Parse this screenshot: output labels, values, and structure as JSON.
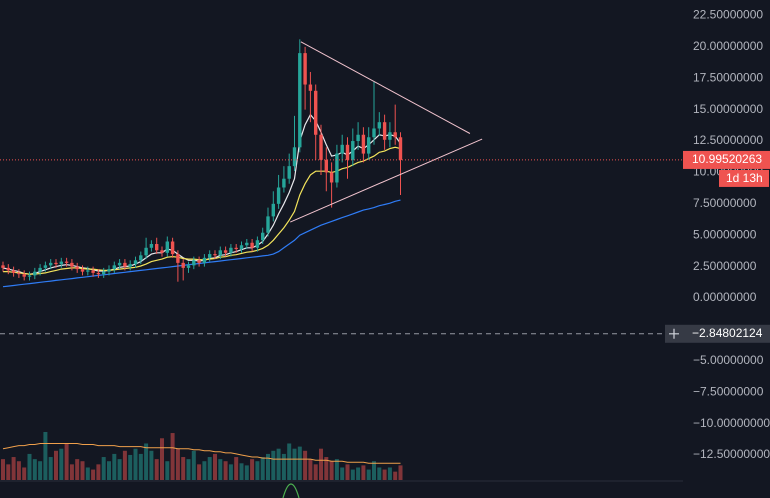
{
  "chart_data": {
    "type": "candlestick",
    "ylim": [
      -14.49,
      23.73
    ],
    "yticks": [
      {
        "value": 22.5,
        "label": "22.50000000"
      },
      {
        "value": 20,
        "label": "20.00000000"
      },
      {
        "value": 17.5,
        "label": "17.50000000"
      },
      {
        "value": 15,
        "label": "15.00000000"
      },
      {
        "value": 12.5,
        "label": "12.50000000"
      },
      {
        "value": 10,
        "label": "10.00000000"
      },
      {
        "value": 7.5,
        "label": "7.50000000"
      },
      {
        "value": 5,
        "label": "5.00000000"
      },
      {
        "value": 2.5,
        "label": "2.50000000"
      },
      {
        "value": 0,
        "label": "0.00000000"
      },
      {
        "value": -5,
        "label": "−5.00000000"
      },
      {
        "value": -7.5,
        "label": "−7.50000000"
      },
      {
        "value": -10,
        "label": "−10.00000000"
      },
      {
        "value": -12.5,
        "label": "−12.50000000"
      }
    ],
    "grid": false,
    "up_color": "#26a69a",
    "down_color": "#ef5350",
    "open": [
      2.6,
      2.4,
      2.2,
      2.0,
      1.9,
      1.7,
      1.8,
      2.1,
      2.4,
      2.6,
      2.8,
      2.7,
      2.9,
      2.8,
      2.5,
      2.3,
      2.1,
      2.2,
      2.0,
      1.9,
      2.1,
      2.3,
      2.6,
      2.8,
      2.5,
      2.7,
      3.0,
      3.4,
      4.0,
      4.3,
      3.8,
      3.6,
      4.5,
      3.5,
      2.8,
      2.4,
      2.6,
      3.0,
      2.8,
      3.2,
      3.5,
      3.4,
      3.8,
      3.6,
      4.0,
      3.9,
      4.2,
      4.4,
      4.0,
      4.6,
      5.2,
      6.5,
      7.5,
      8.8,
      9.5,
      10.5,
      12.0,
      19.5,
      17.0,
      16.5,
      13.0,
      11.0,
      10.0,
      9.2,
      11.5,
      12.2,
      11.0,
      12.5,
      13.0,
      11.5,
      12.8,
      13.5,
      14.0,
      12.6,
      13.2,
      12.8
    ],
    "high": [
      2.9,
      2.7,
      2.5,
      2.3,
      2.2,
      2.1,
      2.4,
      2.7,
      2.9,
      3.1,
      3.1,
      3.2,
      3.2,
      3.1,
      2.8,
      2.6,
      2.5,
      2.5,
      2.3,
      2.4,
      2.6,
      2.9,
      3.1,
      3.1,
      3.0,
      3.3,
      3.7,
      4.8,
      4.6,
      4.8,
      4.1,
      4.9,
      4.8,
      3.8,
      3.1,
      2.9,
      3.3,
      3.3,
      3.5,
      3.8,
      3.8,
      4.1,
      4.1,
      4.3,
      4.3,
      4.5,
      4.7,
      4.7,
      4.9,
      5.6,
      7.2,
      8.5,
      9.8,
      10.5,
      11.5,
      14.5,
      20.6,
      20.0,
      18.0,
      17.0,
      13.8,
      12.0,
      10.8,
      12.2,
      13.0,
      12.8,
      13.5,
      14.0,
      13.6,
      13.6,
      17.2,
      14.8,
      14.6,
      14.0,
      15.4,
      13.2
    ],
    "low": [
      2.1,
      1.9,
      1.7,
      1.6,
      1.4,
      1.4,
      1.5,
      1.8,
      2.1,
      2.3,
      2.4,
      2.4,
      2.5,
      2.2,
      2.0,
      1.8,
      1.8,
      1.7,
      1.6,
      1.6,
      1.8,
      2.0,
      2.3,
      2.2,
      2.2,
      2.4,
      2.7,
      3.1,
      3.7,
      3.5,
      3.3,
      3.3,
      3.2,
      1.3,
      1.4,
      2.0,
      2.3,
      2.5,
      2.5,
      2.9,
      3.1,
      3.1,
      3.3,
      3.3,
      3.6,
      3.6,
      3.9,
      3.7,
      3.7,
      4.3,
      4.9,
      6.1,
      7.1,
      8.4,
      9.1,
      10.1,
      11.6,
      15.0,
      14.0,
      11.0,
      9.8,
      8.5,
      7.2,
      8.8,
      10.8,
      9.5,
      10.5,
      11.8,
      10.8,
      11.0,
      12.2,
      12.9,
      11.8,
      12.0,
      12.2,
      8.2
    ],
    "close": [
      2.4,
      2.2,
      2.0,
      1.9,
      1.7,
      1.8,
      2.1,
      2.4,
      2.6,
      2.8,
      2.7,
      2.9,
      2.8,
      2.5,
      2.3,
      2.1,
      2.2,
      2.0,
      1.9,
      2.1,
      2.3,
      2.6,
      2.8,
      2.5,
      2.7,
      3.0,
      3.4,
      4.0,
      4.3,
      3.8,
      3.6,
      4.5,
      3.5,
      2.8,
      2.4,
      2.6,
      3.0,
      2.8,
      3.2,
      3.5,
      3.4,
      3.8,
      3.6,
      4.0,
      3.9,
      4.2,
      4.4,
      4.0,
      4.6,
      5.2,
      6.5,
      7.5,
      8.8,
      9.5,
      10.5,
      12.0,
      19.5,
      17.0,
      16.5,
      13.0,
      11.0,
      10.0,
      9.2,
      11.5,
      12.2,
      11.0,
      12.5,
      13.0,
      11.5,
      12.8,
      13.5,
      14.0,
      12.6,
      13.2,
      12.8,
      10.99520263
    ],
    "moving_averages": [
      {
        "color": "#e8e8ec",
        "values": [
          2.4,
          2.3,
          2.2,
          2.1,
          1.95,
          1.9,
          1.95,
          2.1,
          2.25,
          2.4,
          2.5,
          2.6,
          2.65,
          2.6,
          2.5,
          2.4,
          2.35,
          2.25,
          2.15,
          2.15,
          2.2,
          2.3,
          2.45,
          2.5,
          2.55,
          2.7,
          2.9,
          3.2,
          3.5,
          3.6,
          3.6,
          3.9,
          3.8,
          3.5,
          3.2,
          3.0,
          3.0,
          2.95,
          3.0,
          3.15,
          3.2,
          3.4,
          3.45,
          3.6,
          3.7,
          3.85,
          4.0,
          4.0,
          4.2,
          4.5,
          5.1,
          5.8,
          6.7,
          7.5,
          8.4,
          9.5,
          12.5,
          13.8,
          14.6,
          14.1,
          13.2,
          12.2,
          11.3,
          11.4,
          11.6,
          11.4,
          11.7,
          12.1,
          11.9,
          12.2,
          12.6,
          13.0,
          12.9,
          13.0,
          12.9,
          12.3
        ]
      },
      {
        "color": "#f3e45c",
        "values": [
          2.1,
          2.1,
          2.05,
          2.0,
          1.95,
          1.9,
          1.9,
          1.95,
          2.0,
          2.1,
          2.2,
          2.3,
          2.35,
          2.4,
          2.4,
          2.35,
          2.3,
          2.3,
          2.25,
          2.2,
          2.2,
          2.25,
          2.3,
          2.35,
          2.4,
          2.45,
          2.55,
          2.7,
          2.9,
          3.0,
          3.1,
          3.25,
          3.3,
          3.25,
          3.15,
          3.1,
          3.1,
          3.05,
          3.05,
          3.1,
          3.15,
          3.25,
          3.3,
          3.4,
          3.45,
          3.55,
          3.65,
          3.7,
          3.8,
          3.95,
          4.2,
          4.6,
          5.1,
          5.6,
          6.2,
          6.9,
          8.2,
          9.1,
          9.8,
          10.1,
          10.1,
          10.1,
          10.0,
          10.1,
          10.3,
          10.4,
          10.6,
          10.8,
          10.9,
          11.1,
          11.3,
          11.6,
          11.7,
          11.9,
          12.0,
          11.9
        ]
      },
      {
        "color": "#2f7cf6",
        "values": [
          0.9,
          0.95,
          1.0,
          1.05,
          1.1,
          1.15,
          1.2,
          1.25,
          1.3,
          1.35,
          1.4,
          1.45,
          1.5,
          1.55,
          1.6,
          1.65,
          1.7,
          1.75,
          1.8,
          1.85,
          1.9,
          1.95,
          2.0,
          2.05,
          2.1,
          2.15,
          2.2,
          2.25,
          2.3,
          2.35,
          2.4,
          2.45,
          2.5,
          2.55,
          2.6,
          2.65,
          2.7,
          2.75,
          2.8,
          2.85,
          2.9,
          2.95,
          3.0,
          3.05,
          3.1,
          3.15,
          3.2,
          3.25,
          3.3,
          3.35,
          3.4,
          3.5,
          3.7,
          4.0,
          4.3,
          4.6,
          5.0,
          5.2,
          5.4,
          5.6,
          5.8,
          5.95,
          6.1,
          6.25,
          6.4,
          6.55,
          6.7,
          6.85,
          7.0,
          7.1,
          7.2,
          7.35,
          7.45,
          7.55,
          7.7,
          7.8
        ]
      }
    ],
    "volume": {
      "values": [
        20,
        15,
        22,
        18,
        12,
        25,
        20,
        18,
        46,
        22,
        28,
        30,
        35,
        15,
        20,
        18,
        12,
        10,
        15,
        22,
        18,
        25,
        20,
        28,
        24,
        30,
        25,
        35,
        28,
        20,
        40,
        18,
        45,
        30,
        22,
        20,
        28,
        15,
        18,
        22,
        25,
        20,
        18,
        15,
        22,
        16,
        14,
        20,
        18,
        22,
        25,
        28,
        30,
        25,
        35,
        30,
        32,
        28,
        20,
        15,
        30,
        22,
        18,
        20,
        12,
        15,
        10,
        12,
        14,
        10,
        18,
        12,
        10,
        12,
        8,
        14
      ],
      "ma": [
        30,
        31,
        32,
        33,
        33,
        34,
        34,
        35,
        35,
        35,
        35,
        35,
        35,
        35,
        35,
        34,
        34,
        34,
        33,
        33,
        33,
        33,
        32,
        32,
        32,
        32,
        32,
        31,
        31,
        31,
        31,
        31,
        31,
        30,
        30,
        30,
        29,
        29,
        28,
        28,
        27,
        27,
        26,
        26,
        25,
        24,
        23,
        22,
        22,
        21,
        21,
        20,
        20,
        20,
        20,
        20,
        20,
        20,
        20,
        19,
        19,
        19,
        18,
        18,
        18,
        17,
        17,
        17,
        17,
        16,
        16,
        16,
        16,
        16,
        16,
        16
      ],
      "ma_color": "#f0a04b"
    },
    "trendlines": [
      {
        "color": "#f2c4cf",
        "x": [
          56.2,
          88.1
        ],
        "y": [
          20.4,
          13.1
        ]
      },
      {
        "color": "#f2c4cf",
        "x": [
          54.2,
          90.4
        ],
        "y": [
          6.05,
          12.66
        ]
      }
    ],
    "countdown": "1d 13h",
    "crosshair": {
      "value": -2.84802124,
      "label": "−2.84802124"
    }
  }
}
